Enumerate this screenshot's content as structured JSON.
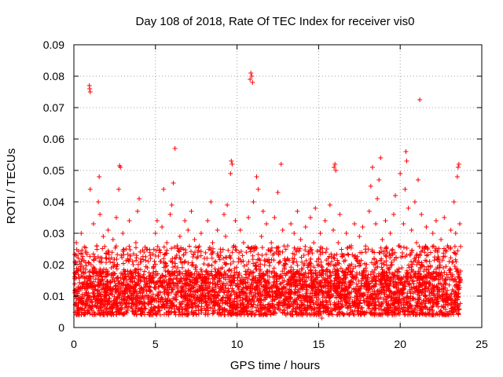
{
  "chart_data": {
    "type": "scatter",
    "title": "Day 108 of 2018, Rate Of TEC Index for receiver vis0",
    "xlabel": "GPS time / hours",
    "ylabel": "ROTI / TECUs",
    "xlim": [
      0,
      25
    ],
    "ylim": [
      0,
      0.09
    ],
    "xticks": [
      0,
      5,
      10,
      15,
      20,
      25
    ],
    "yticks": [
      0,
      0.01,
      0.02,
      0.03,
      0.04,
      0.05,
      0.06,
      0.07,
      0.08,
      0.09
    ],
    "xtick_labels": [
      "0",
      "5",
      "10",
      "15",
      "20",
      "25"
    ],
    "ytick_labels": [
      "0",
      "0.01",
      "0.02",
      "0.03",
      "0.04",
      "0.05",
      "0.06",
      "0.07",
      "0.08",
      "0.09"
    ],
    "grid": true,
    "marker": "+",
    "color": "#ff0000",
    "series": [
      {
        "name": "ROTI",
        "points": [
          [
            0.1,
            0.012
          ],
          [
            0.15,
            0.027
          ],
          [
            0.2,
            0.018
          ],
          [
            0.3,
            0.009
          ],
          [
            0.35,
            0.021
          ],
          [
            0.45,
            0.03
          ],
          [
            0.5,
            0.014
          ],
          [
            0.6,
            0.008
          ],
          [
            0.7,
            0.024
          ],
          [
            0.8,
            0.011
          ],
          [
            0.95,
            0.077
          ],
          [
            0.97,
            0.076
          ],
          [
            1.0,
            0.075
          ],
          [
            1.0,
            0.044
          ],
          [
            1.05,
            0.02
          ],
          [
            1.1,
            0.013
          ],
          [
            1.2,
            0.033
          ],
          [
            1.3,
            0.009
          ],
          [
            1.4,
            0.026
          ],
          [
            1.5,
            0.04
          ],
          [
            1.55,
            0.048
          ],
          [
            1.6,
            0.036
          ],
          [
            1.7,
            0.017
          ],
          [
            1.8,
            0.029
          ],
          [
            1.9,
            0.01
          ],
          [
            2.0,
            0.022
          ],
          [
            2.1,
            0.031
          ],
          [
            2.2,
            0.012
          ],
          [
            2.3,
            0.019
          ],
          [
            2.4,
            0.028
          ],
          [
            2.5,
            0.008
          ],
          [
            2.6,
            0.035
          ],
          [
            2.7,
            0.016
          ],
          [
            2.75,
            0.044
          ],
          [
            2.8,
            0.0515
          ],
          [
            2.85,
            0.051
          ],
          [
            2.9,
            0.023
          ],
          [
            3.0,
            0.03
          ],
          [
            3.1,
            0.011
          ],
          [
            3.2,
            0.025
          ],
          [
            3.3,
            0.018
          ],
          [
            3.4,
            0.034
          ],
          [
            3.5,
            0.009
          ],
          [
            3.6,
            0.021
          ],
          [
            3.7,
            0.013
          ],
          [
            3.8,
            0.027
          ],
          [
            3.9,
            0.037
          ],
          [
            4.0,
            0.041
          ],
          [
            4.1,
            0.015
          ],
          [
            4.2,
            0.01
          ],
          [
            4.3,
            0.024
          ],
          [
            4.4,
            0.006
          ],
          [
            4.5,
            0.019
          ],
          [
            4.6,
            0.012
          ],
          [
            4.7,
            0.022
          ],
          [
            4.8,
            0.016
          ],
          [
            4.9,
            0.009
          ],
          [
            5.0,
            0.03
          ],
          [
            5.1,
            0.034
          ],
          [
            5.2,
            0.013
          ],
          [
            5.3,
            0.021
          ],
          [
            5.4,
            0.032
          ],
          [
            5.5,
            0.044
          ],
          [
            5.6,
            0.018
          ],
          [
            5.7,
            0.027
          ],
          [
            5.8,
            0.011
          ],
          [
            5.9,
            0.036
          ],
          [
            6.0,
            0.039
          ],
          [
            6.1,
            0.046
          ],
          [
            6.2,
            0.057
          ],
          [
            6.3,
            0.023
          ],
          [
            6.4,
            0.014
          ],
          [
            6.5,
            0.029
          ],
          [
            6.6,
            0.01
          ],
          [
            6.7,
            0.025
          ],
          [
            6.8,
            0.034
          ],
          [
            6.9,
            0.017
          ],
          [
            7.0,
            0.031
          ],
          [
            7.1,
            0.012
          ],
          [
            7.2,
            0.037
          ],
          [
            7.3,
            0.02
          ],
          [
            7.4,
            0.028
          ],
          [
            7.5,
            0.009
          ],
          [
            7.6,
            0.024
          ],
          [
            7.7,
            0.016
          ],
          [
            7.8,
            0.03
          ],
          [
            7.9,
            0.011
          ],
          [
            8.0,
            0.022
          ],
          [
            8.1,
            0.018
          ],
          [
            8.2,
            0.034
          ],
          [
            8.3,
            0.013
          ],
          [
            8.4,
            0.04
          ],
          [
            8.5,
            0.027
          ],
          [
            8.6,
            0.01
          ],
          [
            8.7,
            0.021
          ],
          [
            8.8,
            0.031
          ],
          [
            8.9,
            0.015
          ],
          [
            9.0,
            0.024
          ],
          [
            9.1,
            0.012
          ],
          [
            9.2,
            0.036
          ],
          [
            9.3,
            0.029
          ],
          [
            9.4,
            0.039
          ],
          [
            9.5,
            0.018
          ],
          [
            9.6,
            0.049
          ],
          [
            9.65,
            0.053
          ],
          [
            9.7,
            0.052
          ],
          [
            9.8,
            0.026
          ],
          [
            9.9,
            0.034
          ],
          [
            10.0,
            0.011
          ],
          [
            10.1,
            0.022
          ],
          [
            10.2,
            0.031
          ],
          [
            10.3,
            0.016
          ],
          [
            10.4,
            0.027
          ],
          [
            10.5,
            0.009
          ],
          [
            10.6,
            0.02
          ],
          [
            10.7,
            0.035
          ],
          [
            10.8,
            0.079
          ],
          [
            10.85,
            0.081
          ],
          [
            10.9,
            0.08
          ],
          [
            10.95,
            0.078
          ],
          [
            11.0,
            0.04
          ],
          [
            11.1,
            0.025
          ],
          [
            11.2,
            0.048
          ],
          [
            11.3,
            0.044
          ],
          [
            11.4,
            0.018
          ],
          [
            11.5,
            0.029
          ],
          [
            11.6,
            0.037
          ],
          [
            11.7,
            0.013
          ],
          [
            11.8,
            0.033
          ],
          [
            11.9,
            0.021
          ],
          [
            12.0,
            0.01
          ],
          [
            12.1,
            0.027
          ],
          [
            12.2,
            0.016
          ],
          [
            12.3,
            0.035
          ],
          [
            12.4,
            0.024
          ],
          [
            12.5,
            0.043
          ],
          [
            12.6,
            0.012
          ],
          [
            12.7,
            0.052
          ],
          [
            12.8,
            0.031
          ],
          [
            12.9,
            0.019
          ],
          [
            13.0,
            0.009
          ],
          [
            13.1,
            0.026
          ],
          [
            13.2,
            0.014
          ],
          [
            13.3,
            0.033
          ],
          [
            13.4,
            0.022
          ],
          [
            13.5,
            0.03
          ],
          [
            13.6,
            0.011
          ],
          [
            13.7,
            0.037
          ],
          [
            13.8,
            0.018
          ],
          [
            13.9,
            0.028
          ],
          [
            14.0,
            0.013
          ],
          [
            14.1,
            0.023
          ],
          [
            14.2,
            0.032
          ],
          [
            14.3,
            0.01
          ],
          [
            14.4,
            0.02
          ],
          [
            14.5,
            0.035
          ],
          [
            14.6,
            0.016
          ],
          [
            14.7,
            0.027
          ],
          [
            14.8,
            0.038
          ],
          [
            14.9,
            0.012
          ],
          [
            15.0,
            0.022
          ],
          [
            15.1,
            0.03
          ],
          [
            15.2,
            0.003
          ],
          [
            15.3,
            0.018
          ],
          [
            15.4,
            0.034
          ],
          [
            15.5,
            0.025
          ],
          [
            15.6,
            0.01
          ],
          [
            15.7,
            0.039
          ],
          [
            15.8,
            0.021
          ],
          [
            15.9,
            0.031
          ],
          [
            15.95,
            0.051
          ],
          [
            16.0,
            0.052
          ],
          [
            16.05,
            0.05
          ],
          [
            16.1,
            0.017
          ],
          [
            16.2,
            0.027
          ],
          [
            16.3,
            0.036
          ],
          [
            16.4,
            0.012
          ],
          [
            16.5,
            0.023
          ],
          [
            16.6,
            0.014
          ],
          [
            16.7,
            0.03
          ],
          [
            16.8,
            0.019
          ],
          [
            16.9,
            0.009
          ],
          [
            17.0,
            0.026
          ],
          [
            17.1,
            0.016
          ],
          [
            17.2,
            0.033
          ],
          [
            17.3,
            0.011
          ],
          [
            17.4,
            0.021
          ],
          [
            17.5,
            0.029
          ],
          [
            17.6,
            0.013
          ],
          [
            17.7,
            0.032
          ],
          [
            17.8,
            0.018
          ],
          [
            17.9,
            0.024
          ],
          [
            18.0,
            0.01
          ],
          [
            18.1,
            0.037
          ],
          [
            18.2,
            0.045
          ],
          [
            18.3,
            0.051
          ],
          [
            18.4,
            0.022
          ],
          [
            18.5,
            0.033
          ],
          [
            18.6,
            0.041
          ],
          [
            18.7,
            0.047
          ],
          [
            18.8,
            0.054
          ],
          [
            18.9,
            0.028
          ],
          [
            19.0,
            0.016
          ],
          [
            19.1,
            0.034
          ],
          [
            19.2,
            0.024
          ],
          [
            19.3,
            0.012
          ],
          [
            19.4,
            0.03
          ],
          [
            19.5,
            0.02
          ],
          [
            19.6,
            0.036
          ],
          [
            19.7,
            0.042
          ],
          [
            19.8,
            0.014
          ],
          [
            19.9,
            0.026
          ],
          [
            20.0,
            0.049
          ],
          [
            20.1,
            0.019
          ],
          [
            20.2,
            0.033
          ],
          [
            20.3,
            0.044
          ],
          [
            20.35,
            0.056
          ],
          [
            20.4,
            0.053
          ],
          [
            20.5,
            0.038
          ],
          [
            20.6,
            0.023
          ],
          [
            20.7,
            0.031
          ],
          [
            20.8,
            0.011
          ],
          [
            20.9,
            0.04
          ],
          [
            21.0,
            0.027
          ],
          [
            21.1,
            0.047
          ],
          [
            21.2,
            0.0725
          ],
          [
            21.3,
            0.036
          ],
          [
            21.4,
            0.015
          ],
          [
            21.5,
            0.025
          ],
          [
            21.6,
            0.032
          ],
          [
            21.7,
            0.009
          ],
          [
            21.8,
            0.021
          ],
          [
            21.9,
            0.017
          ],
          [
            22.0,
            0.03
          ],
          [
            22.1,
            0.012
          ],
          [
            22.2,
            0.034
          ],
          [
            22.3,
            0.024
          ],
          [
            22.4,
            0.019
          ],
          [
            22.5,
            0.028
          ],
          [
            22.6,
            0.01
          ],
          [
            22.7,
            0.035
          ],
          [
            22.8,
            0.015
          ],
          [
            22.9,
            0.026
          ],
          [
            23.0,
            0.021
          ],
          [
            23.1,
            0.031
          ],
          [
            23.2,
            0.012
          ],
          [
            23.3,
            0.04
          ],
          [
            23.4,
            0.03
          ],
          [
            23.5,
            0.048
          ],
          [
            23.55,
            0.051
          ],
          [
            23.6,
            0.052
          ],
          [
            23.65,
            0.033
          ],
          [
            23.7,
            0.018
          ]
        ]
      }
    ]
  }
}
